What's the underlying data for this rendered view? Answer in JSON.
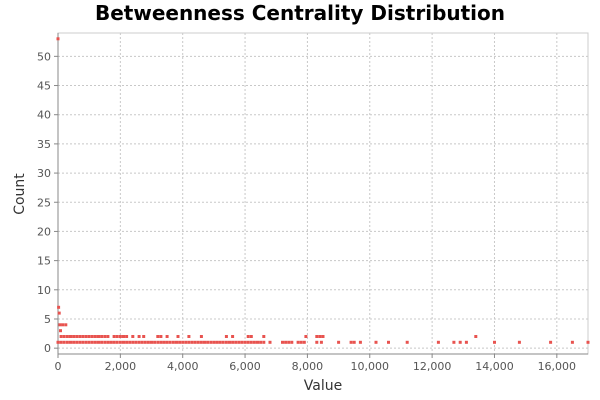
{
  "chart_data": {
    "type": "scatter",
    "title": "Betweenness Centrality Distribution",
    "xlabel": "Value",
    "ylabel": "Count",
    "xlim": [
      0,
      17000
    ],
    "ylim": [
      -1,
      54
    ],
    "x_ticks": [
      0,
      2000,
      4000,
      6000,
      8000,
      10000,
      12000,
      14000,
      16000
    ],
    "x_tick_labels": [
      "0",
      "2,000",
      "4,000",
      "6,000",
      "8,000",
      "10,000",
      "12,000",
      "14,000",
      "16,000"
    ],
    "y_ticks": [
      0,
      5,
      10,
      15,
      20,
      25,
      30,
      35,
      40,
      45,
      50
    ],
    "y_tick_labels": [
      "0",
      "5",
      "10",
      "15",
      "20",
      "25",
      "30",
      "35",
      "40",
      "45",
      "50"
    ],
    "grid": true,
    "legend": "none",
    "point_color": "#e8534f",
    "series": [
      {
        "points": [
          [
            0,
            53
          ],
          [
            20,
            7
          ],
          [
            40,
            6
          ],
          [
            60,
            4
          ],
          [
            80,
            3
          ],
          [
            150,
            4
          ],
          [
            250,
            4
          ],
          [
            0,
            1
          ],
          [
            100,
            1
          ],
          [
            200,
            1
          ],
          [
            300,
            1
          ],
          [
            400,
            1
          ],
          [
            500,
            1
          ],
          [
            600,
            1
          ],
          [
            700,
            1
          ],
          [
            800,
            1
          ],
          [
            900,
            1
          ],
          [
            1000,
            1
          ],
          [
            1100,
            1
          ],
          [
            1200,
            1
          ],
          [
            1300,
            1
          ],
          [
            1400,
            1
          ],
          [
            1500,
            1
          ],
          [
            1600,
            1
          ],
          [
            1700,
            1
          ],
          [
            1800,
            1
          ],
          [
            1900,
            1
          ],
          [
            2000,
            1
          ],
          [
            2100,
            1
          ],
          [
            2200,
            1
          ],
          [
            2300,
            1
          ],
          [
            2400,
            1
          ],
          [
            2500,
            1
          ],
          [
            2600,
            1
          ],
          [
            2700,
            1
          ],
          [
            2800,
            1
          ],
          [
            2900,
            1
          ],
          [
            3000,
            1
          ],
          [
            3100,
            1
          ],
          [
            3200,
            1
          ],
          [
            3300,
            1
          ],
          [
            3400,
            1
          ],
          [
            3500,
            1
          ],
          [
            3600,
            1
          ],
          [
            3700,
            1
          ],
          [
            3800,
            1
          ],
          [
            3900,
            1
          ],
          [
            4000,
            1
          ],
          [
            4100,
            1
          ],
          [
            4200,
            1
          ],
          [
            4300,
            1
          ],
          [
            4400,
            1
          ],
          [
            4500,
            1
          ],
          [
            4600,
            1
          ],
          [
            4700,
            1
          ],
          [
            4800,
            1
          ],
          [
            4900,
            1
          ],
          [
            5000,
            1
          ],
          [
            5100,
            1
          ],
          [
            5200,
            1
          ],
          [
            5300,
            1
          ],
          [
            5400,
            1
          ],
          [
            5500,
            1
          ],
          [
            5600,
            1
          ],
          [
            5700,
            1
          ],
          [
            5800,
            1
          ],
          [
            5900,
            1
          ],
          [
            6000,
            1
          ],
          [
            6100,
            1
          ],
          [
            6200,
            1
          ],
          [
            6300,
            1
          ],
          [
            6400,
            1
          ],
          [
            6500,
            1
          ],
          [
            6600,
            1
          ],
          [
            6800,
            1
          ],
          [
            7200,
            1
          ],
          [
            7300,
            1
          ],
          [
            7400,
            1
          ],
          [
            7500,
            1
          ],
          [
            7700,
            1
          ],
          [
            7800,
            1
          ],
          [
            7900,
            1
          ],
          [
            8300,
            1
          ],
          [
            8450,
            1
          ],
          [
            9000,
            1
          ],
          [
            9400,
            1
          ],
          [
            9500,
            1
          ],
          [
            9700,
            1
          ],
          [
            10200,
            1
          ],
          [
            10600,
            1
          ],
          [
            11200,
            1
          ],
          [
            12200,
            1
          ],
          [
            12700,
            1
          ],
          [
            12900,
            1
          ],
          [
            13100,
            1
          ],
          [
            14000,
            1
          ],
          [
            14800,
            1
          ],
          [
            15800,
            1
          ],
          [
            16500,
            1
          ],
          [
            17000,
            1
          ],
          [
            100,
            2
          ],
          [
            200,
            2
          ],
          [
            300,
            2
          ],
          [
            400,
            2
          ],
          [
            500,
            2
          ],
          [
            600,
            2
          ],
          [
            700,
            2
          ],
          [
            800,
            2
          ],
          [
            900,
            2
          ],
          [
            1000,
            2
          ],
          [
            1100,
            2
          ],
          [
            1200,
            2
          ],
          [
            1300,
            2
          ],
          [
            1400,
            2
          ],
          [
            1500,
            2
          ],
          [
            1600,
            2
          ],
          [
            1800,
            2
          ],
          [
            1900,
            2
          ],
          [
            2000,
            2
          ],
          [
            2100,
            2
          ],
          [
            2200,
            2
          ],
          [
            2400,
            2
          ],
          [
            2600,
            2
          ],
          [
            2750,
            2
          ],
          [
            3200,
            2
          ],
          [
            3300,
            2
          ],
          [
            3500,
            2
          ],
          [
            3850,
            2
          ],
          [
            4200,
            2
          ],
          [
            4600,
            2
          ],
          [
            5400,
            2
          ],
          [
            5600,
            2
          ],
          [
            6100,
            2
          ],
          [
            6200,
            2
          ],
          [
            6600,
            2
          ],
          [
            7950,
            2
          ],
          [
            8300,
            2
          ],
          [
            8400,
            2
          ],
          [
            8500,
            2
          ],
          [
            13400,
            2
          ]
        ]
      }
    ]
  }
}
